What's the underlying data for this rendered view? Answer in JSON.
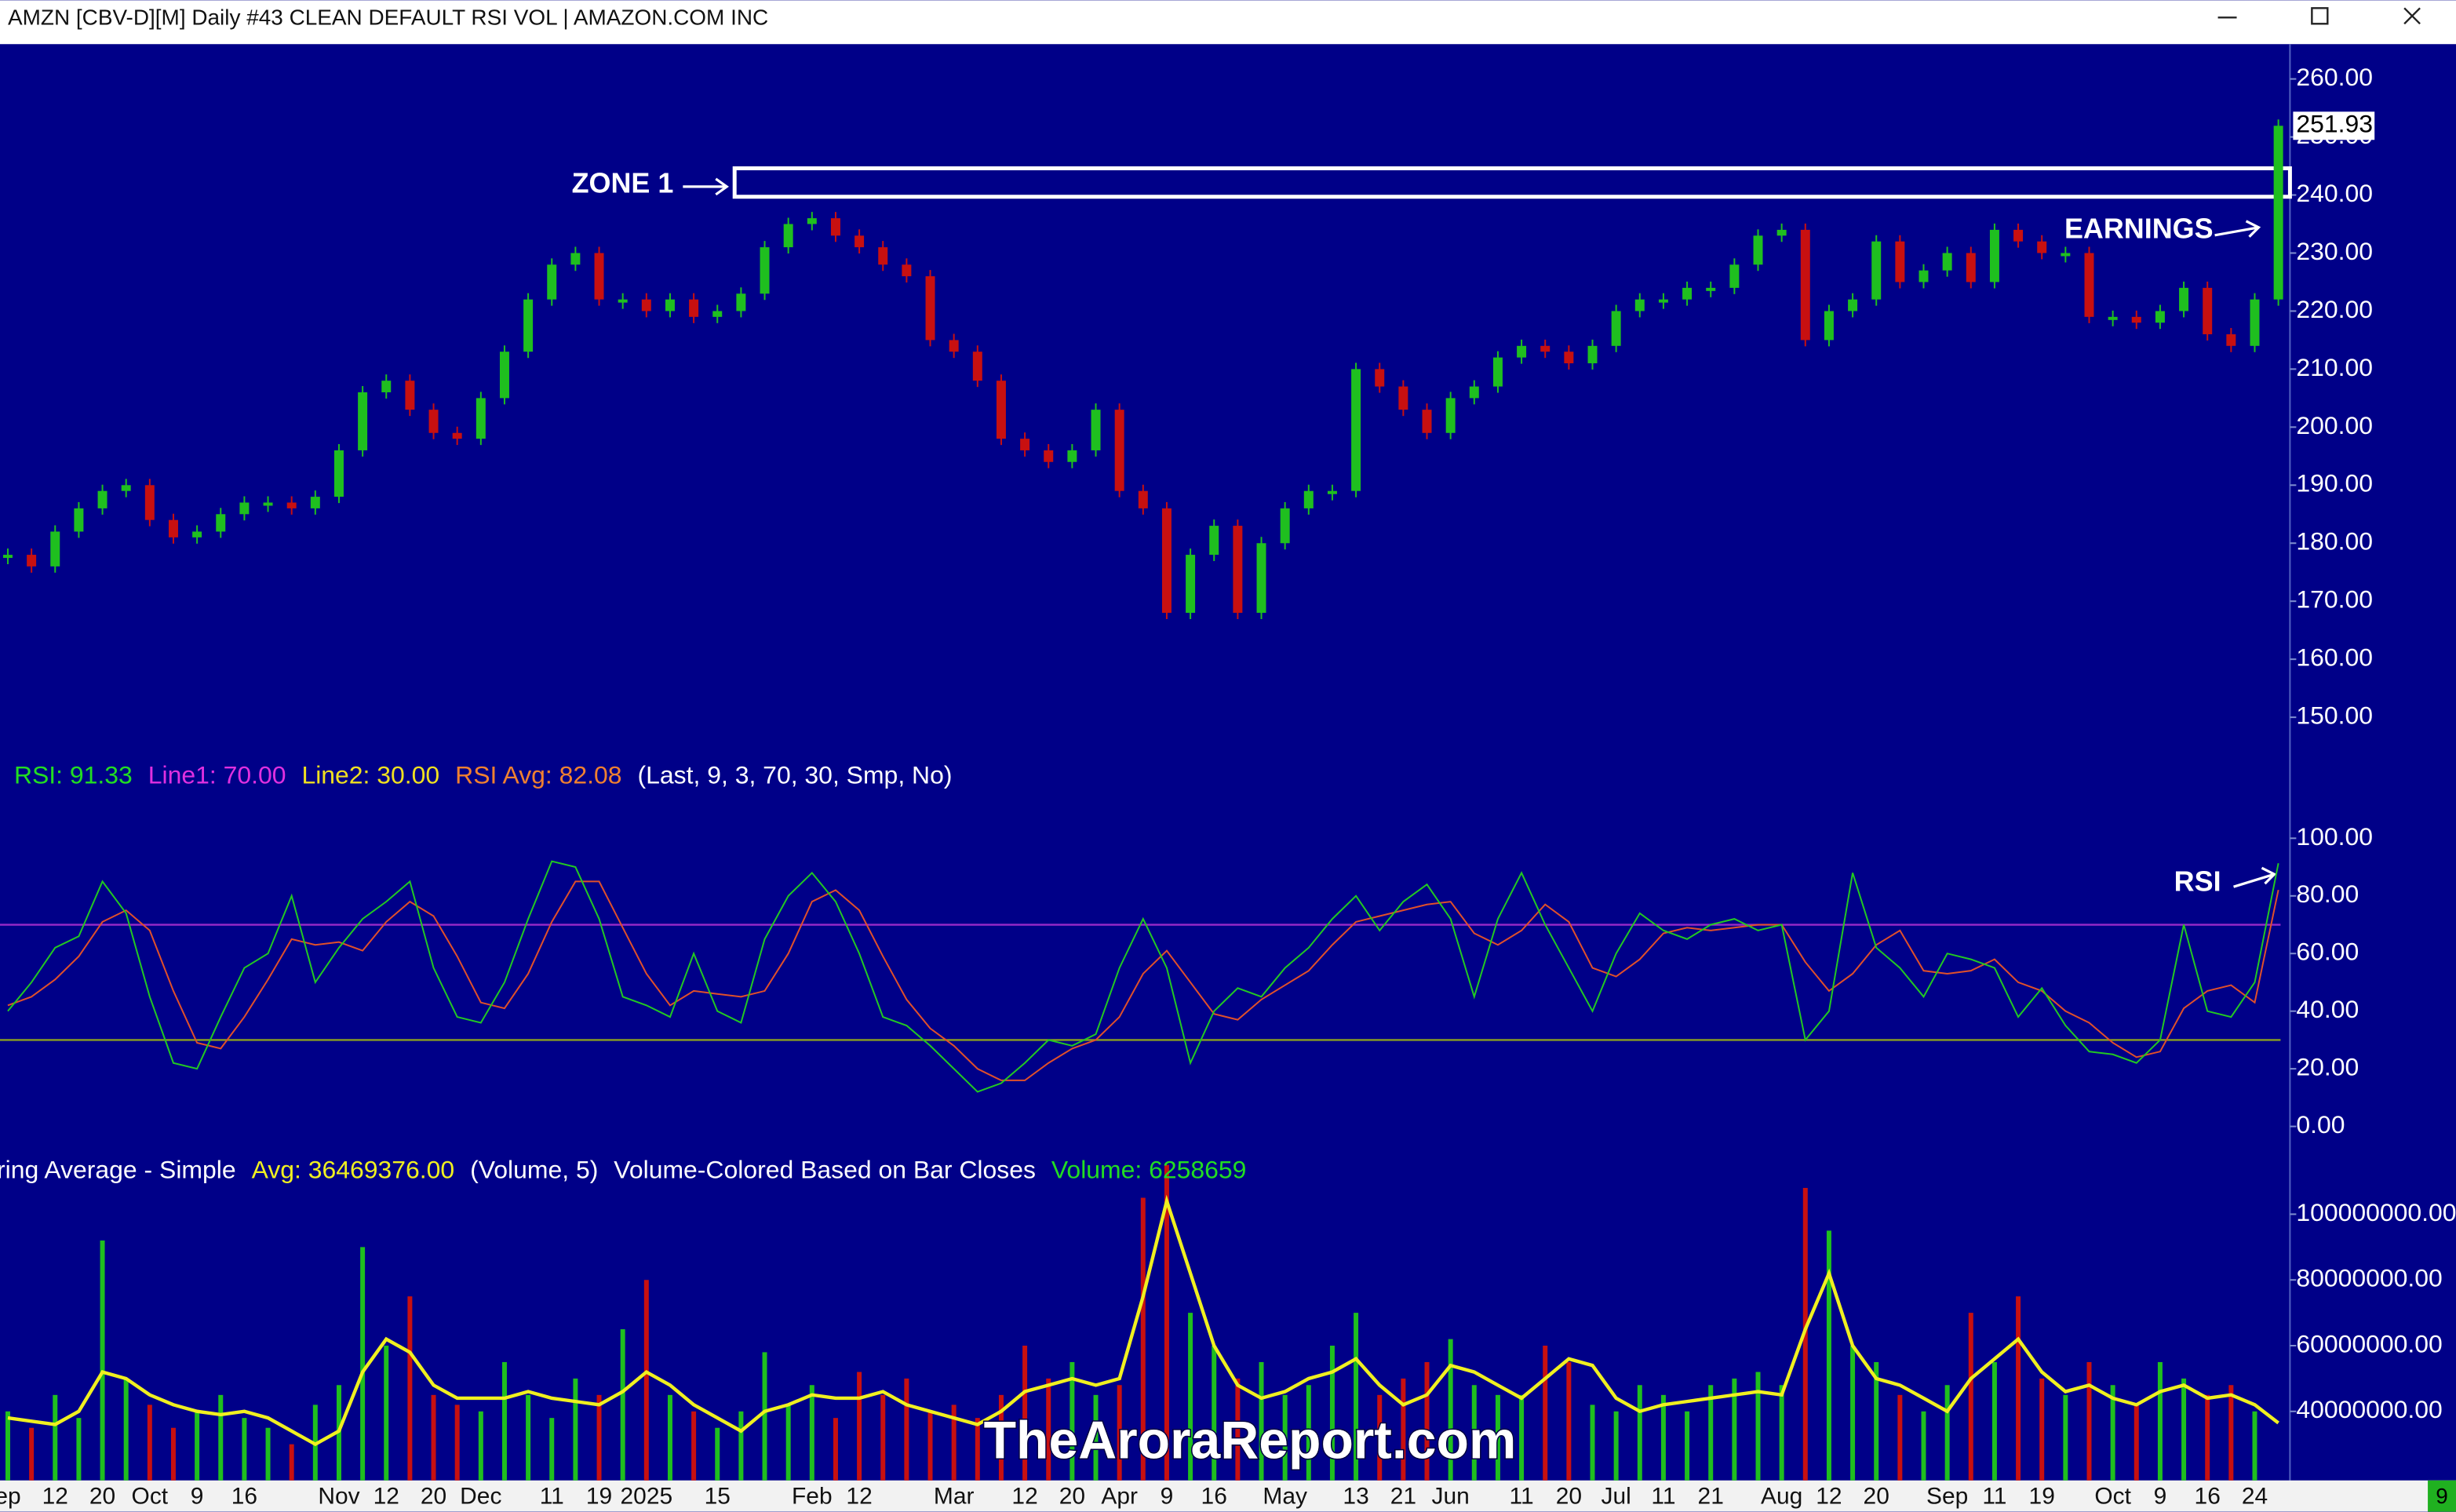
{
  "chart_data": {
    "type": "candlestick",
    "title": "AMZN [CBV-D][M]  Daily #43 CLEAN DEFAULT RSI VOL | AMAZON.COM INC",
    "categories": [
      "ep",
      null,
      "12",
      null,
      "20",
      null,
      "Oct",
      null,
      "9",
      null,
      "16",
      null,
      null,
      null,
      "Nov",
      null,
      "12",
      null,
      "20",
      null,
      "Dec",
      null,
      null,
      "11",
      null,
      "19",
      null,
      "2025",
      null,
      null,
      "15",
      null,
      null,
      null,
      "Feb",
      null,
      "12",
      null,
      null,
      null,
      "Mar",
      null,
      null,
      "12",
      null,
      "20",
      null,
      "Apr",
      null,
      "9",
      null,
      "16",
      null,
      null,
      "May",
      null,
      null,
      "13",
      null,
      "21",
      null,
      "Jun",
      null,
      null,
      "11",
      null,
      "20",
      null,
      "Jul",
      null,
      "11",
      null,
      "21",
      null,
      null,
      "Aug",
      null,
      "12",
      null,
      "20",
      null,
      null,
      "Sep",
      null,
      "11",
      null,
      "19",
      null,
      null,
      "Oct",
      null,
      "9",
      null,
      "16",
      null,
      "24",
      null
    ],
    "price": {
      "values": [
        178,
        176,
        182,
        186,
        189,
        190,
        184,
        181,
        182,
        185,
        187,
        187,
        186,
        188,
        196,
        206,
        208,
        203,
        199,
        198,
        205,
        213,
        222,
        228,
        230,
        222,
        222,
        220,
        222,
        219,
        220,
        223,
        231,
        235,
        236,
        233,
        231,
        228,
        226,
        215,
        213,
        208,
        198,
        196,
        194,
        196,
        203,
        189,
        186,
        168,
        178,
        183,
        168,
        180,
        186,
        189,
        189,
        210,
        207,
        203,
        199,
        205,
        207,
        212,
        214,
        213,
        211,
        214,
        220,
        222,
        222,
        224,
        224,
        228,
        233,
        234,
        215,
        220,
        222,
        232,
        225,
        227,
        230,
        225,
        234,
        232,
        230,
        230,
        219,
        219,
        218,
        220,
        224,
        216,
        214,
        222,
        251.93
      ],
      "up_color": "#1fbf1f",
      "down_color": "#c81010",
      "ylim": [
        144,
        266
      ],
      "yticks": [
        {
          "value": 260,
          "label": "260.00"
        },
        {
          "value": 250,
          "label": "250.00"
        },
        {
          "value": 240,
          "label": "240.00"
        },
        {
          "value": 230,
          "label": "230.00"
        },
        {
          "value": 220,
          "label": "220.00"
        },
        {
          "value": 210,
          "label": "210.00"
        },
        {
          "value": 200,
          "label": "200.00"
        },
        {
          "value": 190,
          "label": "190.00"
        },
        {
          "value": 180,
          "label": "180.00"
        },
        {
          "value": 170,
          "label": "170.00"
        },
        {
          "value": 160,
          "label": "160.00"
        },
        {
          "value": 150,
          "label": "150.00"
        }
      ],
      "zone": {
        "label": "ZONE 1",
        "low": 239.7,
        "high": 244.6
      },
      "earnings_label": "EARNINGS"
    },
    "rsi": {
      "values": [
        40,
        50,
        62,
        66,
        85,
        74,
        45,
        22,
        20,
        38,
        55,
        60,
        80,
        50,
        62,
        72,
        78,
        85,
        55,
        38,
        36,
        50,
        72,
        92,
        90,
        72,
        45,
        42,
        38,
        60,
        40,
        36,
        65,
        80,
        88,
        78,
        60,
        38,
        35,
        28,
        20,
        12,
        15,
        22,
        30,
        28,
        32,
        55,
        72,
        55,
        22,
        40,
        48,
        45,
        55,
        62,
        72,
        80,
        68,
        78,
        84,
        72,
        45,
        72,
        88,
        70,
        55,
        40,
        60,
        74,
        68,
        65,
        70,
        72,
        68,
        70,
        30,
        40,
        88,
        62,
        55,
        45,
        60,
        58,
        55,
        38,
        48,
        35,
        26,
        25,
        22,
        30,
        70,
        40,
        38,
        50,
        91.33
      ],
      "avg_values": [
        42,
        45,
        51,
        59,
        71,
        75,
        68,
        47,
        29,
        27,
        38,
        51,
        65,
        63,
        64,
        61,
        71,
        78,
        73,
        59,
        43,
        41,
        53,
        71,
        85,
        85,
        69,
        53,
        42,
        47,
        46,
        45,
        47,
        60,
        78,
        82,
        75,
        59,
        44,
        34,
        28,
        20,
        16,
        16,
        22,
        27,
        30,
        38,
        53,
        61,
        50,
        39,
        37,
        44,
        49,
        54,
        63,
        71,
        73,
        75,
        77,
        78,
        67,
        63,
        68,
        77,
        71,
        55,
        52,
        58,
        67,
        69,
        68,
        69,
        70,
        70,
        57,
        47,
        53,
        63,
        68,
        54,
        53,
        54,
        58,
        50,
        47,
        40,
        36,
        29,
        24,
        26,
        41,
        47,
        49,
        43,
        82.08
      ],
      "color": "#22c822",
      "avg_color": "#e0502a",
      "line1": 70,
      "line1_color": "#9a2ac8",
      "line2": 30,
      "line2_color": "#8aa020",
      "ylim": [
        -8.7,
        113.6
      ],
      "yticks": [
        {
          "value": 100,
          "label": "100.00"
        },
        {
          "value": 80,
          "label": "80.00"
        },
        {
          "value": 60,
          "label": "60.00"
        },
        {
          "value": 40,
          "label": "40.00"
        },
        {
          "value": 20,
          "label": "20.00"
        },
        {
          "value": 0,
          "label": "0.00"
        }
      ],
      "legend": [
        {
          "text": "RSI: 91.33",
          "color": "#22dd22"
        },
        {
          "text": "Line1: 70.00",
          "color": "#e030e0"
        },
        {
          "text": "Line2: 30.00",
          "color": "#f0e020"
        },
        {
          "text": "RSI Avg: 82.08",
          "color": "#f08030"
        },
        {
          "text": "(Last, 9, 3, 70, 30, Smp, No)",
          "color": "#ffffff"
        }
      ],
      "annotation": "RSI"
    },
    "volume": {
      "values": [
        40000000,
        35000000,
        45000000,
        38000000,
        92000000,
        50000000,
        42000000,
        35000000,
        40000000,
        45000000,
        38000000,
        35000000,
        30000000,
        42000000,
        48000000,
        90000000,
        60000000,
        75000000,
        45000000,
        42000000,
        40000000,
        55000000,
        45000000,
        38000000,
        50000000,
        45000000,
        65000000,
        80000000,
        45000000,
        40000000,
        35000000,
        40000000,
        58000000,
        42000000,
        48000000,
        38000000,
        52000000,
        45000000,
        50000000,
        40000000,
        42000000,
        38000000,
        45000000,
        60000000,
        50000000,
        55000000,
        45000000,
        48000000,
        105000000,
        115000000,
        70000000,
        60000000,
        50000000,
        55000000,
        45000000,
        48000000,
        60000000,
        70000000,
        45000000,
        50000000,
        55000000,
        62000000,
        48000000,
        45000000,
        45000000,
        60000000,
        55000000,
        42000000,
        40000000,
        48000000,
        45000000,
        40000000,
        48000000,
        50000000,
        52000000,
        48000000,
        108000000,
        95000000,
        60000000,
        55000000,
        45000000,
        40000000,
        48000000,
        70000000,
        55000000,
        75000000,
        50000000,
        45000000,
        55000000,
        48000000,
        42000000,
        55000000,
        50000000,
        45000000,
        48000000,
        40000000,
        6258659
      ],
      "avg_values": [
        38000000,
        37000000,
        36000000,
        40000000,
        52000000,
        50000000,
        45000000,
        42000000,
        40000000,
        39000000,
        40000000,
        38000000,
        34000000,
        30000000,
        34000000,
        52000000,
        62000000,
        58000000,
        48000000,
        44000000,
        44000000,
        44000000,
        46000000,
        44000000,
        43000000,
        42000000,
        46000000,
        52000000,
        48000000,
        42000000,
        38000000,
        34000000,
        40000000,
        42000000,
        45000000,
        44000000,
        44000000,
        46000000,
        42000000,
        40000000,
        38000000,
        36000000,
        40000000,
        46000000,
        48000000,
        50000000,
        48000000,
        50000000,
        75000000,
        104000000,
        82000000,
        60000000,
        48000000,
        44000000,
        46000000,
        50000000,
        52000000,
        56000000,
        48000000,
        42000000,
        45000000,
        54000000,
        52000000,
        48000000,
        44000000,
        50000000,
        56000000,
        54000000,
        44000000,
        40000000,
        42000000,
        43000000,
        44000000,
        45000000,
        46000000,
        45000000,
        65000000,
        82000000,
        60000000,
        50000000,
        48000000,
        44000000,
        40000000,
        50000000,
        56000000,
        62000000,
        52000000,
        46000000,
        48000000,
        44000000,
        42000000,
        46000000,
        48000000,
        44000000,
        45000000,
        42000000,
        36469376
      ],
      "avg_color": "#f0f020",
      "ylim": [
        19000000,
        116700000
      ],
      "yticks": [
        {
          "value": 100000000,
          "label": "100000000.00"
        },
        {
          "value": 80000000,
          "label": "80000000.00"
        },
        {
          "value": 60000000,
          "label": "60000000.00"
        },
        {
          "value": 40000000,
          "label": "40000000.00"
        }
      ],
      "legend": [
        {
          "text": "ring Average - Simple",
          "color": "#ffffff"
        },
        {
          "text": "Avg: 36469376.00",
          "color": "#f0f020"
        },
        {
          "text": "(Volume, 5)",
          "color": "#ffffff"
        },
        {
          "text": "Volume-Colored Based on Bar Closes",
          "color": "#ffffff"
        },
        {
          "text": "Volume: 6258659",
          "color": "#22dd22"
        }
      ]
    },
    "watermark": "TheAroraReport.com",
    "corner_label": "9"
  }
}
